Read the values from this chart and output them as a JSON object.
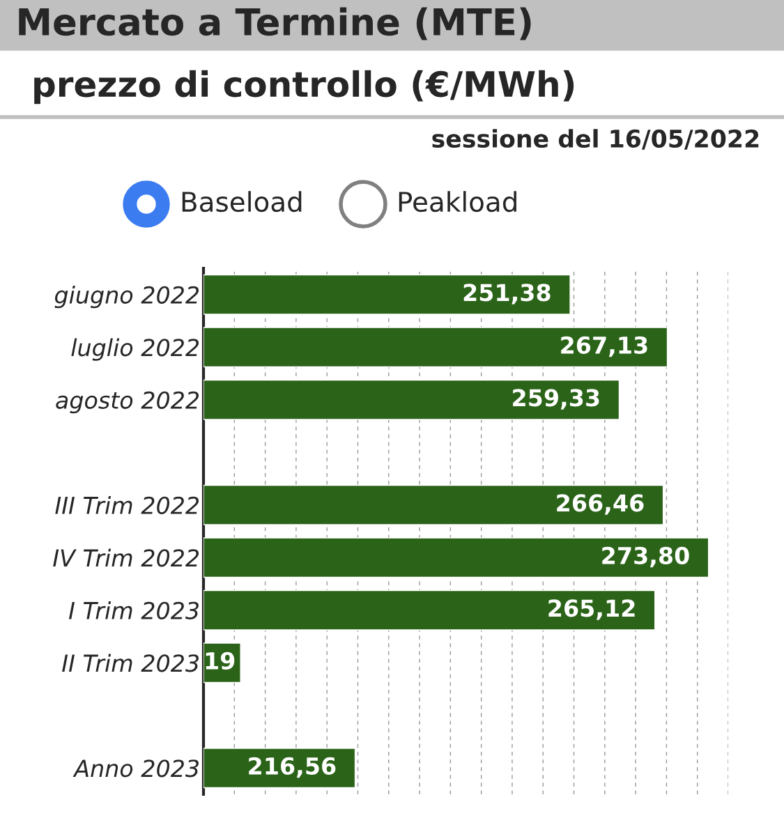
{
  "chart_data": {
    "type": "bar",
    "orientation": "horizontal",
    "title": "Mercato a Termine (MTE)",
    "subtitle": "prezzo di controllo (€/MWh)",
    "annotations": [
      "sessione del 16/05/2022",
      "Baseload",
      "Peakload",
      {
        "text": "19",
        "x": 192,
        "y": "II Trim 2023"
      }
    ],
    "categories": [
      "giugno 2022",
      "luglio 2022",
      "agosto 2022",
      null,
      "III Trim 2022",
      "IV Trim 2022",
      "I Trim 2023",
      "II Trim 2023",
      null,
      "Anno 2023"
    ],
    "values": [
      251.38,
      267.13,
      259.33,
      null,
      266.46,
      273.8,
      265.12,
      198,
      null,
      216.56
    ],
    "value_labels": [
      "251,38",
      "267,13",
      "259,33",
      null,
      "266,46",
      "273,80",
      "265,12",
      null,
      null,
      "216,56"
    ],
    "color": "#2b6419",
    "xlim": [
      192,
      277
    ],
    "xticks": [
      {
        "value": 197,
        "label": null
      },
      {
        "value": 202,
        "label": null
      },
      {
        "value": 207,
        "label": null
      },
      {
        "value": 212,
        "label": null
      },
      {
        "value": 217,
        "label": null
      },
      {
        "value": 222,
        "label": null
      },
      {
        "value": 227,
        "label": null
      },
      {
        "value": 232,
        "label": null
      },
      {
        "value": 237,
        "label": null
      },
      {
        "value": 242,
        "label": null
      },
      {
        "value": 247,
        "label": null
      },
      {
        "value": 252,
        "label": null
      },
      {
        "value": 257,
        "label": null
      },
      {
        "value": 262,
        "label": null
      },
      {
        "value": 267,
        "label": null
      },
      {
        "value": 272,
        "label": null
      },
      {
        "value": 277,
        "label": null
      }
    ],
    "grid": "x",
    "tick_labels": "y"
  }
}
